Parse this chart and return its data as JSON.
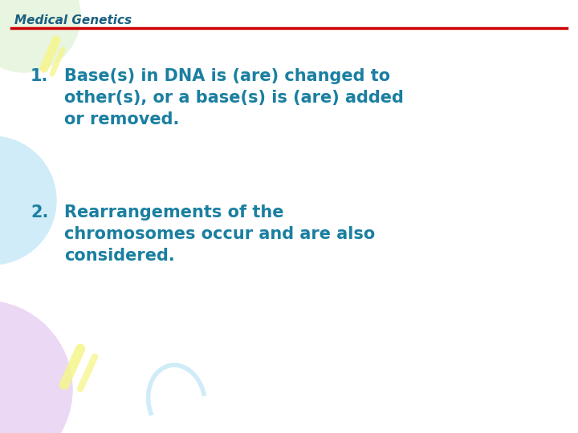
{
  "title": "Medical Genetics",
  "title_color": "#1a6080",
  "line_color": "#cc0000",
  "bg_color": "#ffffff",
  "text_color": "#1a7fa0",
  "item1": "Base(s) in DNA is (are) changed to\nother(s), or a base(s) is (are) added\nor removed.",
  "item2": "Rearrangements of the\nchromosomes occur and are also\nconsidered.",
  "title_fontsize": 11,
  "body_fontsize": 15,
  "number_fontsize": 15,
  "deco_green_color": "#e8f5e0",
  "deco_blue_color": "#d0ecf8",
  "deco_purple_color": "#ead8f5",
  "deco_yellow_color": "#f5f590"
}
